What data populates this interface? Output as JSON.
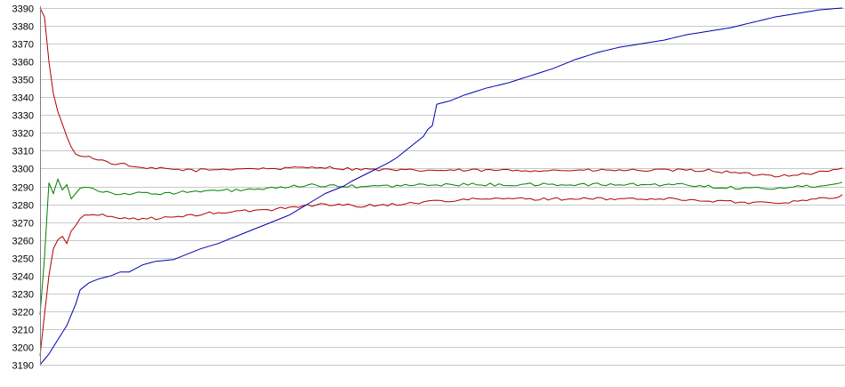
{
  "chart_data": {
    "type": "line",
    "title": "",
    "xlabel": "",
    "ylabel": "",
    "ylim": [
      3190,
      3390
    ],
    "yticks": [
      3390,
      3380,
      3370,
      3360,
      3350,
      3340,
      3330,
      3320,
      3310,
      3300,
      3290,
      3280,
      3270,
      3260,
      3250,
      3240,
      3230,
      3220,
      3210,
      3200,
      3190
    ],
    "grid": true,
    "legend": "none",
    "x_count": 181,
    "series": [
      {
        "color": "#b00000",
        "noise": 0.8,
        "points": [
          [
            0,
            3390
          ],
          [
            1,
            3385
          ],
          [
            2,
            3360
          ],
          [
            3,
            3342
          ],
          [
            4,
            3332
          ],
          [
            5,
            3325
          ],
          [
            6,
            3318
          ],
          [
            7,
            3312
          ],
          [
            8,
            3308
          ],
          [
            9,
            3307
          ],
          [
            12,
            3306
          ],
          [
            16,
            3303
          ],
          [
            20,
            3302
          ],
          [
            22,
            3300
          ],
          [
            26,
            3300
          ],
          [
            35,
            3299
          ],
          [
            45,
            3300
          ],
          [
            55,
            3300
          ],
          [
            62,
            3301
          ],
          [
            68,
            3300
          ],
          [
            80,
            3299
          ],
          [
            100,
            3299
          ],
          [
            120,
            3299
          ],
          [
            140,
            3299
          ],
          [
            150,
            3299
          ],
          [
            158,
            3297
          ],
          [
            165,
            3296
          ],
          [
            172,
            3297
          ],
          [
            178,
            3299
          ],
          [
            180,
            3300
          ]
        ]
      },
      {
        "color": "#008000",
        "noise": 0.9,
        "points": [
          [
            0,
            3218
          ],
          [
            1,
            3250
          ],
          [
            2,
            3292
          ],
          [
            3,
            3286
          ],
          [
            4,
            3294
          ],
          [
            5,
            3288
          ],
          [
            6,
            3291
          ],
          [
            7,
            3283
          ],
          [
            8,
            3286
          ],
          [
            9,
            3289
          ],
          [
            11,
            3290
          ],
          [
            14,
            3287
          ],
          [
            18,
            3286
          ],
          [
            25,
            3286
          ],
          [
            35,
            3287
          ],
          [
            45,
            3288
          ],
          [
            55,
            3289
          ],
          [
            60,
            3291
          ],
          [
            65,
            3290
          ],
          [
            75,
            3290
          ],
          [
            90,
            3291
          ],
          [
            110,
            3291
          ],
          [
            130,
            3291
          ],
          [
            145,
            3291
          ],
          [
            150,
            3290
          ],
          [
            158,
            3289
          ],
          [
            165,
            3289
          ],
          [
            172,
            3290
          ],
          [
            180,
            3292
          ]
        ]
      },
      {
        "color": "#b00000",
        "noise": 0.8,
        "points": [
          [
            0,
            3195
          ],
          [
            1,
            3218
          ],
          [
            2,
            3240
          ],
          [
            3,
            3255
          ],
          [
            4,
            3260
          ],
          [
            5,
            3262
          ],
          [
            6,
            3258
          ],
          [
            7,
            3265
          ],
          [
            8,
            3268
          ],
          [
            9,
            3272
          ],
          [
            10,
            3274
          ],
          [
            13,
            3274
          ],
          [
            16,
            3273
          ],
          [
            20,
            3272
          ],
          [
            25,
            3272
          ],
          [
            32,
            3273
          ],
          [
            38,
            3275
          ],
          [
            45,
            3276
          ],
          [
            52,
            3277
          ],
          [
            58,
            3279
          ],
          [
            65,
            3280
          ],
          [
            72,
            3279
          ],
          [
            80,
            3280
          ],
          [
            90,
            3282
          ],
          [
            100,
            3283
          ],
          [
            110,
            3283
          ],
          [
            120,
            3283
          ],
          [
            130,
            3283
          ],
          [
            140,
            3283
          ],
          [
            150,
            3282
          ],
          [
            158,
            3281
          ],
          [
            165,
            3281
          ],
          [
            172,
            3282
          ],
          [
            178,
            3284
          ],
          [
            180,
            3285
          ]
        ]
      },
      {
        "color": "#0000b0",
        "noise": 0,
        "points": [
          [
            0,
            3190
          ],
          [
            2,
            3196
          ],
          [
            4,
            3204
          ],
          [
            6,
            3212
          ],
          [
            8,
            3224
          ],
          [
            9,
            3232
          ],
          [
            11,
            3236
          ],
          [
            13,
            3238
          ],
          [
            16,
            3240
          ],
          [
            18,
            3242
          ],
          [
            20,
            3242
          ],
          [
            23,
            3246
          ],
          [
            26,
            3248
          ],
          [
            30,
            3249
          ],
          [
            33,
            3252
          ],
          [
            36,
            3255
          ],
          [
            40,
            3258
          ],
          [
            44,
            3262
          ],
          [
            48,
            3266
          ],
          [
            52,
            3270
          ],
          [
            56,
            3274
          ],
          [
            60,
            3280
          ],
          [
            64,
            3286
          ],
          [
            68,
            3290
          ],
          [
            70,
            3293
          ],
          [
            74,
            3298
          ],
          [
            78,
            3303
          ],
          [
            80,
            3306
          ],
          [
            83,
            3312
          ],
          [
            86,
            3318
          ],
          [
            87,
            3322
          ],
          [
            88,
            3324
          ],
          [
            89,
            3336
          ],
          [
            92,
            3338
          ],
          [
            95,
            3341
          ],
          [
            100,
            3345
          ],
          [
            105,
            3348
          ],
          [
            110,
            3352
          ],
          [
            115,
            3356
          ],
          [
            120,
            3361
          ],
          [
            125,
            3365
          ],
          [
            130,
            3368
          ],
          [
            135,
            3370
          ],
          [
            140,
            3372
          ],
          [
            145,
            3375
          ],
          [
            150,
            3377
          ],
          [
            155,
            3379
          ],
          [
            160,
            3382
          ],
          [
            165,
            3385
          ],
          [
            170,
            3387
          ],
          [
            175,
            3389
          ],
          [
            180,
            3390
          ]
        ]
      }
    ]
  }
}
